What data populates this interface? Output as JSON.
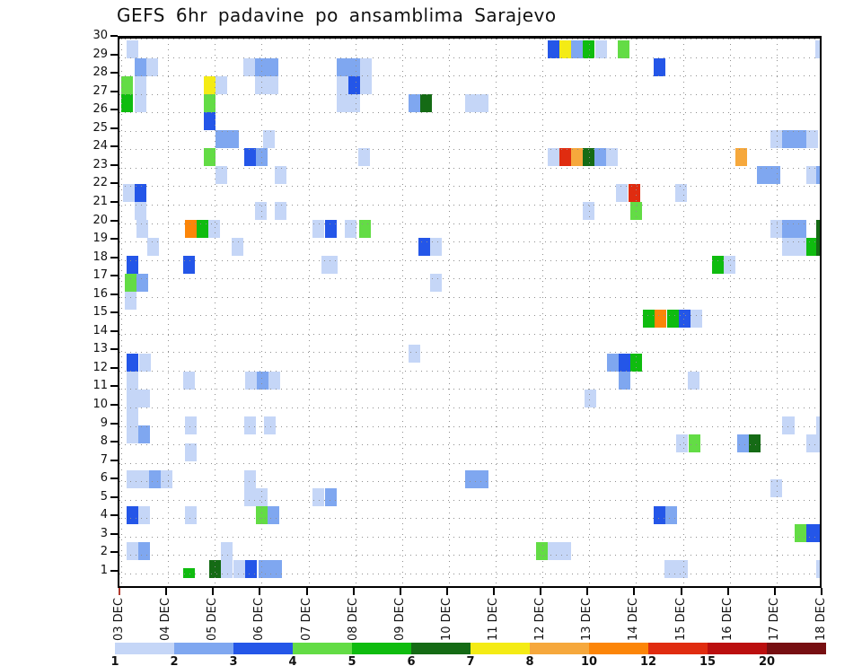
{
  "title": "GEFS 6hr padavine po ansamblima Sarajevo",
  "colors": {
    "background": "#ffffff",
    "axis": "#000000",
    "grid_dots": "#8f8f8f",
    "first_x_tick": "#b03a2e"
  },
  "chart_data": {
    "type": "heatmap",
    "title": "GEFS 6hr padavine po ansamblima Sarajevo",
    "xlabel": "time (6-hour slots, 03-18 DEC)",
    "ylabel": "ensemble member",
    "grid": "dotted",
    "x_axis": {
      "labels": [
        "03 DEC",
        "04 DEC",
        "05 DEC",
        "06 DEC",
        "07 DEC",
        "08 DEC",
        "09 DEC",
        "10 DEC",
        "11 DEC",
        "12 DEC",
        "13 DEC",
        "14 DEC",
        "15 DEC",
        "16 DEC",
        "17 DEC",
        "18 DEC"
      ],
      "slots_per_day": 4
    },
    "y_axis": {
      "labels": [
        "30",
        "29",
        "28",
        "27",
        "26",
        "25",
        "24",
        "23",
        "22",
        "21",
        "20",
        "19",
        "18",
        "17",
        "16",
        "15",
        "14",
        "13",
        "12",
        "11",
        "10",
        "9",
        "8",
        "7",
        "6",
        "5",
        "4",
        "3",
        "2",
        "1"
      ]
    },
    "legend": {
      "position": "bottom",
      "labels": [
        "1",
        "2",
        "3",
        "4",
        "5",
        "6",
        "7",
        "8",
        "10",
        "12",
        "15",
        "20"
      ],
      "colors": [
        "#c5d6f7",
        "#7fa7f0",
        "#2456e8",
        "#63dc45",
        "#0fbc0f",
        "#156b15",
        "#f4eb15",
        "#f6a83c",
        "#fc8508",
        "#e02c10",
        "#bb0f0f",
        "#770f12"
      ]
    },
    "cell_format": "[member, slot6h_from_03DEC00, level_1to12, width_slots_opt, height_rows_opt]",
    "cells": [
      [
        30,
        0.5,
        1
      ],
      [
        30,
        36.5,
        3
      ],
      [
        30,
        37.5,
        7
      ],
      [
        30,
        38.5,
        2
      ],
      [
        30,
        39.5,
        5
      ],
      [
        30,
        40.6,
        1
      ],
      [
        30,
        42.5,
        4
      ],
      [
        30,
        59.4,
        1
      ],
      [
        29,
        1.2,
        2
      ],
      [
        29,
        2.2,
        1
      ],
      [
        29,
        10.5,
        1
      ],
      [
        29,
        11.5,
        2
      ],
      [
        29,
        12.5,
        2
      ],
      [
        29,
        18.5,
        2
      ],
      [
        29,
        19.5,
        2
      ],
      [
        29,
        20.5,
        1
      ],
      [
        29,
        45.6,
        3
      ],
      [
        28,
        0.1,
        4
      ],
      [
        28,
        1.2,
        1
      ],
      [
        28,
        7.1,
        7
      ],
      [
        28,
        8.1,
        1
      ],
      [
        28,
        11.5,
        1
      ],
      [
        28,
        12.5,
        1
      ],
      [
        28,
        18.5,
        1
      ],
      [
        28,
        19.5,
        3
      ],
      [
        28,
        20.5,
        1
      ],
      [
        27,
        0.1,
        5
      ],
      [
        27,
        1.2,
        1
      ],
      [
        27,
        7.1,
        4
      ],
      [
        27,
        18.5,
        1
      ],
      [
        27,
        19.5,
        1
      ],
      [
        27,
        24.6,
        2
      ],
      [
        27,
        25.6,
        6
      ],
      [
        27,
        29.5,
        1
      ],
      [
        27,
        30.5,
        1
      ],
      [
        26,
        7.1,
        3
      ],
      [
        25,
        8.1,
        2
      ],
      [
        25,
        9.1,
        2
      ],
      [
        25,
        12.2,
        1
      ],
      [
        25,
        55.6,
        1
      ],
      [
        25,
        56.6,
        2
      ],
      [
        25,
        57.6,
        2
      ],
      [
        25,
        58.6,
        1
      ],
      [
        24,
        7.1,
        4
      ],
      [
        24,
        10.6,
        3
      ],
      [
        24,
        11.6,
        2
      ],
      [
        24,
        20.3,
        1
      ],
      [
        24,
        36.5,
        1
      ],
      [
        24,
        37.5,
        10
      ],
      [
        24,
        38.5,
        8
      ],
      [
        24,
        39.5,
        6
      ],
      [
        24,
        40.5,
        2
      ],
      [
        24,
        41.5,
        1
      ],
      [
        24,
        52.6,
        8
      ],
      [
        23,
        8.1,
        1
      ],
      [
        23,
        13.2,
        1
      ],
      [
        23,
        54.4,
        2
      ],
      [
        23,
        55.4,
        2
      ],
      [
        23,
        58.6,
        1
      ],
      [
        23,
        59.5,
        2
      ],
      [
        22,
        0.2,
        1
      ],
      [
        22,
        1.2,
        3
      ],
      [
        22,
        42.4,
        1
      ],
      [
        22,
        43.4,
        10
      ],
      [
        22,
        47.4,
        1
      ],
      [
        21,
        1.2,
        1
      ],
      [
        21,
        11.5,
        1
      ],
      [
        21,
        13.2,
        1
      ],
      [
        21,
        39.5,
        1
      ],
      [
        21,
        43.6,
        4
      ],
      [
        20,
        1.4,
        1
      ],
      [
        20,
        5.5,
        9
      ],
      [
        20,
        6.5,
        5
      ],
      [
        20,
        7.5,
        1
      ],
      [
        20,
        16.4,
        1
      ],
      [
        20,
        17.5,
        3
      ],
      [
        20,
        19.2,
        1
      ],
      [
        20,
        20.4,
        4
      ],
      [
        20,
        55.6,
        1
      ],
      [
        20,
        56.6,
        2
      ],
      [
        20,
        57.6,
        2
      ],
      [
        20,
        59.5,
        6
      ],
      [
        19,
        2.3,
        1
      ],
      [
        19,
        9.5,
        1
      ],
      [
        19,
        25.5,
        3
      ],
      [
        19,
        26.5,
        1
      ],
      [
        19,
        56.6,
        1
      ],
      [
        19,
        57.6,
        1
      ],
      [
        19,
        58.6,
        5
      ],
      [
        19,
        59.5,
        6
      ],
      [
        18,
        0.5,
        3
      ],
      [
        18,
        5.4,
        3
      ],
      [
        18,
        17.2,
        1,
        1.4
      ],
      [
        18,
        50.6,
        5
      ],
      [
        18,
        51.6,
        1
      ],
      [
        17,
        0.4,
        4
      ],
      [
        17,
        1.4,
        2
      ],
      [
        17,
        26.5,
        1
      ],
      [
        16,
        0.4,
        1
      ],
      [
        15,
        44.7,
        5
      ],
      [
        15,
        45.7,
        9
      ],
      [
        15,
        46.7,
        5
      ],
      [
        15,
        47.7,
        3
      ],
      [
        15,
        48.7,
        1
      ],
      [
        13,
        24.6,
        1
      ],
      [
        12.5,
        0.55,
        3
      ],
      [
        12.5,
        1.6,
        1
      ],
      [
        12.5,
        41.6,
        2
      ],
      [
        12.5,
        42.6,
        3
      ],
      [
        12.5,
        43.6,
        5
      ],
      [
        11.5,
        0.5,
        1
      ],
      [
        11.5,
        5.4,
        1
      ],
      [
        11.5,
        10.7,
        1
      ],
      [
        11.5,
        11.7,
        2
      ],
      [
        11.5,
        12.7,
        1
      ],
      [
        11.5,
        42.6,
        2
      ],
      [
        11.5,
        48.5,
        1
      ],
      [
        10.5,
        0.5,
        1
      ],
      [
        10.5,
        1.5,
        1
      ],
      [
        10.5,
        39.7,
        1
      ],
      [
        9.5,
        0.5,
        1
      ],
      [
        9,
        5.5,
        1
      ],
      [
        9,
        10.6,
        1
      ],
      [
        9,
        12.3,
        1
      ],
      [
        9,
        56.6,
        1
      ],
      [
        9,
        59.5,
        1
      ],
      [
        8.5,
        0.5,
        1
      ],
      [
        8.5,
        1.5,
        2
      ],
      [
        8,
        47.5,
        1
      ],
      [
        8,
        48.6,
        4
      ],
      [
        8,
        52.7,
        2
      ],
      [
        8,
        53.7,
        6
      ],
      [
        8,
        58.6,
        1
      ],
      [
        8,
        59.5,
        1
      ],
      [
        7.5,
        5.5,
        1
      ],
      [
        6,
        0.5,
        1
      ],
      [
        6,
        1.5,
        1
      ],
      [
        6,
        2.45,
        2
      ],
      [
        6,
        3.45,
        1
      ],
      [
        6,
        10.6,
        1
      ],
      [
        6,
        29.5,
        2
      ],
      [
        6,
        30.5,
        2
      ],
      [
        5.5,
        55.6,
        1
      ],
      [
        5,
        10.6,
        1
      ],
      [
        5,
        11.6,
        1
      ],
      [
        5,
        16.4,
        1
      ],
      [
        5,
        17.5,
        2
      ],
      [
        4,
        0.5,
        3
      ],
      [
        4,
        1.5,
        1
      ],
      [
        4,
        5.5,
        1
      ],
      [
        4,
        11.6,
        4
      ],
      [
        4,
        12.6,
        2
      ],
      [
        4,
        45.6,
        3
      ],
      [
        4,
        46.6,
        2
      ],
      [
        3,
        57.6,
        4
      ],
      [
        3,
        58.6,
        3
      ],
      [
        3,
        59.5,
        3
      ],
      [
        2,
        0.5,
        1
      ],
      [
        2,
        1.5,
        2
      ],
      [
        2,
        8.6,
        1
      ],
      [
        2,
        35.5,
        4
      ],
      [
        2,
        36.5,
        1
      ],
      [
        2,
        37.5,
        1
      ],
      [
        1,
        7.6,
        6
      ],
      [
        1,
        8.6,
        1
      ],
      [
        1,
        9.7,
        1
      ],
      [
        1,
        10.7,
        3
      ],
      [
        1,
        11.8,
        2
      ],
      [
        1,
        12.8,
        2
      ],
      [
        1,
        46.5,
        1
      ],
      [
        1,
        47.5,
        1
      ],
      [
        1,
        59.5,
        1
      ],
      [
        0.55,
        5.4,
        5,
        1,
        0.55
      ]
    ]
  }
}
